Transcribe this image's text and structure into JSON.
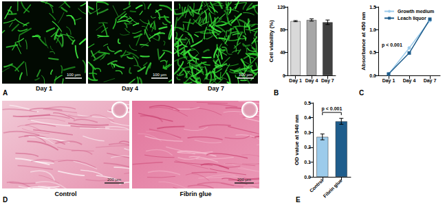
{
  "chart_data": [
    {
      "panel_label": "B",
      "type": "bar",
      "y_label": "Cell viability (%)",
      "categories": [
        "Day 1",
        "Day 4",
        "Day 7"
      ],
      "values": [
        95,
        97,
        93
      ],
      "errors": [
        1,
        2,
        4
      ],
      "colors": [
        "#d9d9d9",
        "#a6a6a6",
        "#404040"
      ],
      "ylim": [
        0,
        120
      ],
      "yticks": [
        0,
        40,
        80,
        120
      ]
    },
    {
      "panel_label": "C",
      "type": "line",
      "y_label": "Absorbance at 450 nm",
      "categories": [
        "Day 1",
        "Day 4",
        "Day 7"
      ],
      "series": [
        {
          "name": "Growth medium",
          "color": "#9ccbeb",
          "marker": "circle",
          "values": [
            0.03,
            0.6,
            1.2
          ]
        },
        {
          "name": "Leach liquor",
          "color": "#1f5d8c",
          "marker": "square",
          "values": [
            0.03,
            0.49,
            1.23
          ]
        }
      ],
      "ylim": [
        0,
        1.5
      ],
      "yticks": [
        {
          "value": 0,
          "label": "0.0"
        },
        0.5,
        {
          "value": 1,
          "label": "1.0"
        },
        1.5
      ],
      "legend": "upper left",
      "annotations": [
        "p < 0.001"
      ]
    },
    {
      "panel_label": "E",
      "type": "bar",
      "y_label": "OD value at 540 nm",
      "categories": [
        "Control",
        "Fibrin glue"
      ],
      "values": [
        0.27,
        0.375
      ],
      "errors": [
        0.02,
        0.02
      ],
      "colors": [
        "#9ccbeb",
        "#1f5d8c"
      ],
      "ylim": [
        0,
        0.5
      ],
      "yticks": [
        {
          "value": 0,
          "label": "0.0"
        },
        0.1,
        0.2,
        0.3,
        0.4,
        0.5
      ],
      "annotations": [
        "p < 0.001"
      ]
    }
  ],
  "image_panels": [
    {
      "panel_label": "A",
      "images": [
        {
          "caption": "Day 1",
          "scale_bar": "100 μm"
        },
        {
          "caption": "Day 4",
          "scale_bar": "100 μm"
        },
        {
          "caption": "Day 7",
          "scale_bar": "100 μm"
        }
      ]
    },
    {
      "panel_label": "D",
      "images": [
        {
          "caption": "Control",
          "scale_bar": "200 μm"
        },
        {
          "caption": "Fibrin glue",
          "scale_bar": "200 μm"
        }
      ]
    }
  ]
}
